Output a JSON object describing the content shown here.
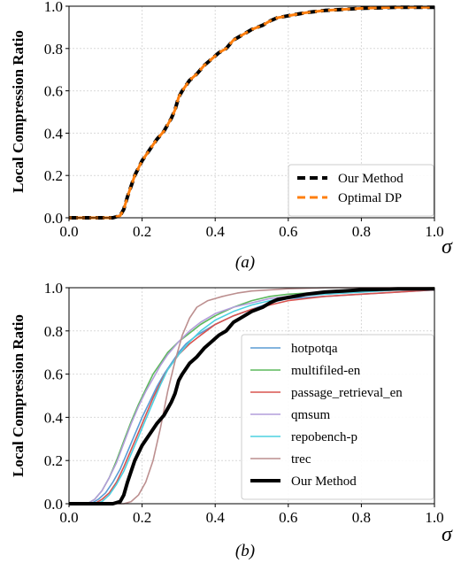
{
  "chart_data": [
    {
      "type": "line",
      "panel_caption": "(a)",
      "ylabel": "Local Compression Ratio",
      "xlabel": "σ",
      "xlim": [
        0,
        1
      ],
      "ylim": [
        0,
        1
      ],
      "xticks": [
        "0.0",
        "0.2",
        "0.4",
        "0.6",
        "0.8",
        "1.0"
      ],
      "yticks": [
        "0.0",
        "0.2",
        "0.4",
        "0.6",
        "0.8",
        "1.0"
      ],
      "grid": true,
      "legend_position": "bottom-right",
      "series": [
        {
          "name": "Our Method",
          "color": "#000000",
          "style": "dashed",
          "x": [
            0,
            0.12,
            0.14,
            0.15,
            0.16,
            0.17,
            0.18,
            0.2,
            0.22,
            0.24,
            0.26,
            0.28,
            0.29,
            0.3,
            0.31,
            0.33,
            0.35,
            0.37,
            0.39,
            0.41,
            0.43,
            0.45,
            0.47,
            0.5,
            0.53,
            0.55,
            0.57,
            0.6,
            0.65,
            0.7,
            0.75,
            0.8,
            0.9,
            1.0
          ],
          "y": [
            0,
            0,
            0.01,
            0.04,
            0.1,
            0.15,
            0.2,
            0.27,
            0.32,
            0.37,
            0.41,
            0.47,
            0.51,
            0.57,
            0.6,
            0.65,
            0.68,
            0.72,
            0.75,
            0.78,
            0.8,
            0.84,
            0.86,
            0.89,
            0.91,
            0.93,
            0.945,
            0.955,
            0.97,
            0.98,
            0.985,
            0.99,
            0.995,
            0.995
          ]
        },
        {
          "name": "Optimal DP",
          "color": "#ff7f0e",
          "style": "dashed",
          "x": [
            0,
            0.12,
            0.14,
            0.15,
            0.16,
            0.17,
            0.18,
            0.2,
            0.22,
            0.24,
            0.26,
            0.28,
            0.29,
            0.3,
            0.31,
            0.33,
            0.35,
            0.37,
            0.39,
            0.41,
            0.43,
            0.45,
            0.47,
            0.5,
            0.53,
            0.55,
            0.57,
            0.6,
            0.65,
            0.7,
            0.75,
            0.8,
            0.9,
            1.0
          ],
          "y": [
            0,
            0,
            0.01,
            0.04,
            0.1,
            0.15,
            0.2,
            0.27,
            0.32,
            0.37,
            0.41,
            0.47,
            0.51,
            0.57,
            0.6,
            0.65,
            0.68,
            0.72,
            0.75,
            0.78,
            0.8,
            0.84,
            0.86,
            0.89,
            0.91,
            0.93,
            0.945,
            0.955,
            0.97,
            0.98,
            0.985,
            0.99,
            0.995,
            0.995
          ]
        }
      ]
    },
    {
      "type": "line",
      "panel_caption": "(b)",
      "ylabel": "Local Compression Ratio",
      "xlabel": "σ",
      "xlim": [
        0,
        1
      ],
      "ylim": [
        0,
        1
      ],
      "xticks": [
        "0.0",
        "0.2",
        "0.4",
        "0.6",
        "0.8",
        "1.0"
      ],
      "yticks": [
        "0.0",
        "0.2",
        "0.4",
        "0.6",
        "0.8",
        "1.0"
      ],
      "grid": true,
      "legend_position": "center-right",
      "series": [
        {
          "name": "hotpotqa",
          "color": "#5a9bd4",
          "x": [
            0,
            0.06,
            0.08,
            0.1,
            0.12,
            0.14,
            0.16,
            0.18,
            0.2,
            0.22,
            0.24,
            0.26,
            0.28,
            0.3,
            0.32,
            0.35,
            0.4,
            0.45,
            0.5,
            0.55,
            0.6,
            0.7,
            0.8,
            0.9,
            1.0
          ],
          "y": [
            0,
            0,
            0.02,
            0.05,
            0.1,
            0.16,
            0.24,
            0.32,
            0.4,
            0.47,
            0.54,
            0.6,
            0.65,
            0.7,
            0.74,
            0.78,
            0.83,
            0.87,
            0.9,
            0.93,
            0.95,
            0.96,
            0.97,
            0.98,
            0.99
          ]
        },
        {
          "name": "multifiled-en",
          "color": "#5cb85c",
          "x": [
            0,
            0.05,
            0.07,
            0.09,
            0.11,
            0.13,
            0.15,
            0.17,
            0.19,
            0.21,
            0.23,
            0.25,
            0.27,
            0.3,
            0.33,
            0.36,
            0.4,
            0.45,
            0.5,
            0.55,
            0.6,
            0.7,
            0.8,
            0.9,
            1.0
          ],
          "y": [
            0,
            0,
            0.02,
            0.06,
            0.12,
            0.2,
            0.29,
            0.38,
            0.46,
            0.53,
            0.6,
            0.65,
            0.7,
            0.75,
            0.79,
            0.83,
            0.87,
            0.91,
            0.94,
            0.96,
            0.97,
            0.98,
            0.99,
            0.995,
            1.0
          ]
        },
        {
          "name": "passage_retrieval_en",
          "color": "#d9534f",
          "x": [
            0,
            0.07,
            0.09,
            0.11,
            0.13,
            0.15,
            0.17,
            0.19,
            0.21,
            0.23,
            0.25,
            0.27,
            0.3,
            0.33,
            0.36,
            0.4,
            0.45,
            0.5,
            0.55,
            0.6,
            0.7,
            0.8,
            0.9,
            1.0
          ],
          "y": [
            0,
            0,
            0.02,
            0.05,
            0.1,
            0.17,
            0.25,
            0.33,
            0.41,
            0.49,
            0.56,
            0.62,
            0.69,
            0.74,
            0.78,
            0.83,
            0.87,
            0.9,
            0.92,
            0.94,
            0.96,
            0.97,
            0.98,
            0.99
          ]
        },
        {
          "name": "qmsum",
          "color": "#b39ddb",
          "x": [
            0,
            0.05,
            0.07,
            0.09,
            0.11,
            0.13,
            0.15,
            0.17,
            0.19,
            0.21,
            0.23,
            0.25,
            0.27,
            0.3,
            0.33,
            0.36,
            0.4,
            0.45,
            0.5,
            0.55,
            0.6,
            0.7,
            0.8,
            0.9,
            1.0
          ],
          "y": [
            0,
            0,
            0.02,
            0.06,
            0.12,
            0.19,
            0.28,
            0.37,
            0.45,
            0.52,
            0.58,
            0.64,
            0.69,
            0.75,
            0.8,
            0.84,
            0.88,
            0.91,
            0.93,
            0.95,
            0.96,
            0.97,
            0.98,
            0.99,
            0.99
          ]
        },
        {
          "name": "repobench-p",
          "color": "#4dd0e1",
          "x": [
            0,
            0.07,
            0.09,
            0.11,
            0.13,
            0.15,
            0.17,
            0.19,
            0.21,
            0.23,
            0.25,
            0.27,
            0.3,
            0.33,
            0.36,
            0.4,
            0.45,
            0.5,
            0.55,
            0.6,
            0.7,
            0.8,
            0.9,
            1.0
          ],
          "y": [
            0,
            0,
            0.01,
            0.04,
            0.09,
            0.15,
            0.23,
            0.31,
            0.39,
            0.47,
            0.55,
            0.62,
            0.69,
            0.75,
            0.8,
            0.85,
            0.89,
            0.92,
            0.94,
            0.96,
            0.97,
            0.98,
            0.99,
            0.995
          ]
        },
        {
          "name": "trec",
          "color": "#bc8f8f",
          "x": [
            0,
            0.15,
            0.17,
            0.19,
            0.21,
            0.23,
            0.25,
            0.27,
            0.29,
            0.31,
            0.33,
            0.35,
            0.38,
            0.42,
            0.46,
            0.5,
            0.55,
            0.6,
            0.7,
            0.8,
            0.9,
            1.0
          ],
          "y": [
            0,
            0,
            0.01,
            0.04,
            0.1,
            0.2,
            0.35,
            0.52,
            0.66,
            0.78,
            0.86,
            0.91,
            0.94,
            0.96,
            0.975,
            0.985,
            0.99,
            0.995,
            1.0,
            1.0,
            1.0,
            1.0
          ]
        },
        {
          "name": "Our Method",
          "color": "#000000",
          "width": "thick",
          "x": [
            0,
            0.12,
            0.14,
            0.15,
            0.16,
            0.17,
            0.18,
            0.2,
            0.22,
            0.24,
            0.26,
            0.28,
            0.29,
            0.3,
            0.31,
            0.33,
            0.35,
            0.37,
            0.39,
            0.41,
            0.43,
            0.45,
            0.47,
            0.5,
            0.53,
            0.55,
            0.57,
            0.6,
            0.65,
            0.7,
            0.75,
            0.8,
            0.9,
            1.0
          ],
          "y": [
            0,
            0,
            0.01,
            0.04,
            0.1,
            0.15,
            0.2,
            0.27,
            0.32,
            0.37,
            0.41,
            0.47,
            0.51,
            0.57,
            0.6,
            0.65,
            0.68,
            0.72,
            0.75,
            0.78,
            0.8,
            0.84,
            0.86,
            0.89,
            0.91,
            0.93,
            0.945,
            0.955,
            0.97,
            0.98,
            0.985,
            0.99,
            0.995,
            0.995
          ]
        }
      ]
    }
  ]
}
